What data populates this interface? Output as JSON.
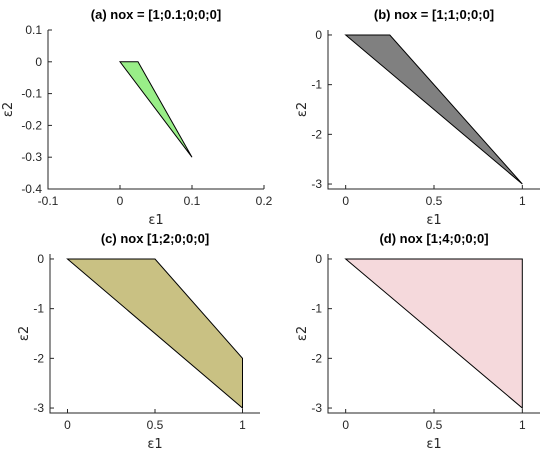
{
  "chart_data": [
    {
      "type": "area",
      "title": "(a) nox = [1;0.1;0;0;0]",
      "xlabel": "ε1",
      "ylabel": "ε2",
      "xlim": [
        -0.1,
        0.2
      ],
      "ylim": [
        -0.4,
        0.1
      ],
      "xticks": [
        -0.1,
        0,
        0.1,
        0.2
      ],
      "xtick_labels": [
        "-0.1",
        "0",
        "0.1",
        "0.2"
      ],
      "yticks": [
        -0.4,
        -0.3,
        -0.2,
        -0.1,
        0,
        0.1
      ],
      "ytick_labels": [
        "-0.4",
        "-0.3",
        "-0.2",
        "-0.1",
        "0",
        "0.1"
      ],
      "fill_color": "#99ee88",
      "polygon": [
        [
          0,
          0
        ],
        [
          0.025,
          0
        ],
        [
          0.1,
          -0.3
        ]
      ]
    },
    {
      "type": "area",
      "title": "(b) nox = [1;1;0;0;0]",
      "xlabel": "ε1",
      "ylabel": "ε2",
      "xlim": [
        -0.1,
        1.1
      ],
      "ylim": [
        -3.1,
        0.1
      ],
      "xticks": [
        0,
        0.5,
        1
      ],
      "xtick_labels": [
        "0",
        "0.5",
        "1"
      ],
      "yticks": [
        -3,
        -2,
        -1,
        0
      ],
      "ytick_labels": [
        "-3",
        "-2",
        "-1",
        "0"
      ],
      "fill_color": "#808080",
      "polygon": [
        [
          0,
          0
        ],
        [
          0.25,
          0
        ],
        [
          1,
          -3
        ]
      ]
    },
    {
      "type": "area",
      "title": "(c) nox [1;2;0;0;0]",
      "xlabel": "ε1",
      "ylabel": "ε2",
      "xlim": [
        -0.1,
        1.1
      ],
      "ylim": [
        -3.1,
        0.1
      ],
      "xticks": [
        0,
        0.5,
        1
      ],
      "xtick_labels": [
        "0",
        "0.5",
        "1"
      ],
      "yticks": [
        -3,
        -2,
        -1,
        0
      ],
      "ytick_labels": [
        "-3",
        "-2",
        "-1",
        "0"
      ],
      "fill_color": "#c9c183",
      "polygon": [
        [
          0,
          0
        ],
        [
          0.5,
          0
        ],
        [
          1,
          -2
        ],
        [
          1,
          -3
        ]
      ]
    },
    {
      "type": "area",
      "title": "(d) nox [1;4;0;0;0]",
      "xlabel": "ε1",
      "ylabel": "ε2",
      "xlim": [
        -0.1,
        1.1
      ],
      "ylim": [
        -3.1,
        0.1
      ],
      "xticks": [
        0,
        0.5,
        1
      ],
      "xtick_labels": [
        "0",
        "0.5",
        "1"
      ],
      "yticks": [
        -3,
        -2,
        -1,
        0
      ],
      "ytick_labels": [
        "-3",
        "-2",
        "-1",
        "0"
      ],
      "fill_color": "#f5d9dc",
      "polygon": [
        [
          0,
          0
        ],
        [
          1,
          0
        ],
        [
          1,
          -3
        ]
      ]
    }
  ]
}
